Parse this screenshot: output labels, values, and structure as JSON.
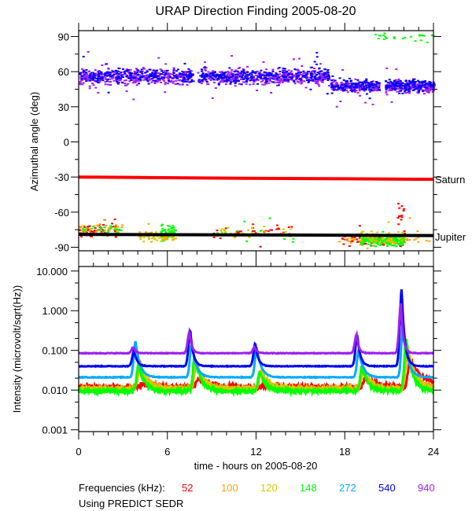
{
  "chart_data": [
    {
      "type": "scatter",
      "title": "URAP Direction Finding  2005-08-20",
      "xlabel": "",
      "ylabel": "Azimuthal angle (deg)",
      "xlim": [
        0,
        24
      ],
      "ylim": [
        -93,
        95
      ],
      "yticks": [
        90,
        60,
        30,
        0,
        -30,
        -60,
        -90
      ],
      "ytick_labels": [
        "90",
        "60",
        "30",
        "0",
        "-30",
        "-60",
        "-90"
      ],
      "reference_lines": [
        {
          "name": "Saturn",
          "color": "#ff0000",
          "points": [
            [
              0,
              -30
            ],
            [
              11,
              -31
            ],
            [
              18,
              -31.5
            ],
            [
              24,
              -32
            ]
          ]
        },
        {
          "name": "Jupiter",
          "color": "#000000",
          "points": [
            [
              0,
              -79
            ],
            [
              24,
              -80
            ]
          ]
        }
      ],
      "clusters": [
        {
          "freq": "940",
          "t0": 0,
          "t1": 7.7,
          "center": 56,
          "spread": 6,
          "count": 420
        },
        {
          "freq": "540",
          "t0": 0,
          "t1": 7.7,
          "center": 57,
          "spread": 6,
          "count": 220
        },
        {
          "freq": "940",
          "t0": 8.0,
          "t1": 16.9,
          "center": 56,
          "spread": 6,
          "count": 480
        },
        {
          "freq": "540",
          "t0": 8.0,
          "t1": 16.9,
          "center": 57,
          "spread": 6,
          "count": 260
        },
        {
          "freq": "940",
          "t0": 17.0,
          "t1": 20.3,
          "center": 48,
          "spread": 5,
          "count": 200
        },
        {
          "freq": "540",
          "t0": 17.0,
          "t1": 20.3,
          "center": 49,
          "spread": 5,
          "count": 120
        },
        {
          "freq": "940",
          "t0": 20.7,
          "t1": 24,
          "center": 48,
          "spread": 5,
          "count": 220
        },
        {
          "freq": "540",
          "t0": 20.7,
          "t1": 24,
          "center": 49,
          "spread": 5,
          "count": 130
        },
        {
          "freq": "52",
          "t0": 0,
          "t1": 2.5,
          "center": -76,
          "spread": 5,
          "count": 70
        },
        {
          "freq": "100",
          "t0": 0,
          "t1": 3,
          "center": -74,
          "spread": 6,
          "count": 40
        },
        {
          "freq": "148",
          "t0": 0,
          "t1": 3,
          "center": -75,
          "spread": 6,
          "count": 30
        },
        {
          "freq": "120",
          "t0": 4,
          "t1": 6.5,
          "center": -80,
          "spread": 4,
          "count": 40
        },
        {
          "freq": "100",
          "t0": 4,
          "t1": 6.5,
          "center": -79,
          "spread": 4,
          "count": 40
        },
        {
          "freq": "148",
          "t0": 5.5,
          "t1": 6.5,
          "center": -76,
          "spread": 5,
          "count": 40
        },
        {
          "freq": "52",
          "t0": 9,
          "t1": 14.5,
          "center": -76,
          "spread": 6,
          "count": 40
        },
        {
          "freq": "120",
          "t0": 9,
          "t1": 14.5,
          "center": -76,
          "spread": 6,
          "count": 30
        },
        {
          "freq": "148",
          "t0": 9,
          "t1": 14.5,
          "center": -78,
          "spread": 6,
          "count": 20
        },
        {
          "freq": "52",
          "t0": 17.5,
          "t1": 22,
          "center": -83,
          "spread": 5,
          "count": 60
        },
        {
          "freq": "148",
          "t0": 19,
          "t1": 22,
          "center": -84,
          "spread": 4,
          "count": 180
        },
        {
          "freq": "120",
          "t0": 19,
          "t1": 22,
          "center": -81,
          "spread": 5,
          "count": 60
        },
        {
          "freq": "100",
          "t0": 17.5,
          "t1": 24,
          "center": -82,
          "spread": 5,
          "count": 40
        },
        {
          "freq": "52",
          "t0": 21.5,
          "t1": 22,
          "center": -62,
          "spread": 8,
          "count": 12
        },
        {
          "freq": "148",
          "t0": 20,
          "t1": 24,
          "center": 90,
          "spread": 3,
          "count": 25
        }
      ]
    },
    {
      "type": "line",
      "xlabel": "time - hours on 2005-08-20",
      "ylabel": "Intensity (microvolt/sqrt(Hz))",
      "xlim": [
        0,
        24
      ],
      "ylim": [
        0.0009,
        13
      ],
      "yscale": "log",
      "xticks": [
        0,
        6,
        12,
        18,
        24
      ],
      "xtick_labels": [
        "0",
        "6",
        "12",
        "18",
        "24"
      ],
      "yticks": [
        10,
        1,
        0.1,
        0.01,
        0.001
      ],
      "ytick_labels": [
        "10.000",
        "1.000",
        "0.100",
        "0.010",
        "0.001"
      ],
      "series": [
        {
          "name": "52",
          "color": "#ff0000",
          "baseline": 0.012,
          "delay": 0.6,
          "decay": 0.9
        },
        {
          "name": "100",
          "color": "#ffa500",
          "baseline": 0.011,
          "delay": 0.45,
          "decay": 0.5
        },
        {
          "name": "120",
          "color": "#cdcd00",
          "baseline": 0.0105,
          "delay": 0.4,
          "decay": 0.5
        },
        {
          "name": "148",
          "color": "#00ff00",
          "baseline": 0.0095,
          "delay": 0.35,
          "decay": 0.4
        },
        {
          "name": "272",
          "color": "#00aaff",
          "baseline": 0.021,
          "delay": 0.15,
          "decay": 0.3
        },
        {
          "name": "540",
          "color": "#0000ff",
          "baseline": 0.04,
          "delay": 0.05,
          "decay": 0.2
        },
        {
          "name": "940",
          "color": "#a020f0",
          "baseline": 0.085,
          "delay": 0.0,
          "decay": 0.15
        }
      ],
      "bursts": [
        {
          "t": 3.7,
          "peaks": {
            "52": 0.015,
            "100": 0.05,
            "120": 0.05,
            "148": 0.045,
            "272": 0.17,
            "540": 0.1,
            "940": 0.12
          }
        },
        {
          "t": 7.5,
          "peaks": {
            "52": 0.02,
            "100": 0.05,
            "120": 0.06,
            "148": 0.07,
            "272": 0.15,
            "540": 0.33,
            "940": 0.3
          }
        },
        {
          "t": 11.9,
          "peaks": {
            "52": 0.013,
            "100": 0.03,
            "120": 0.035,
            "148": 0.03,
            "272": 0.12,
            "540": 0.15,
            "940": 0.12
          }
        },
        {
          "t": 18.8,
          "peaks": {
            "52": 0.02,
            "100": 0.03,
            "120": 0.04,
            "148": 0.04,
            "272": 0.1,
            "540": 0.25,
            "940": 0.25
          }
        },
        {
          "t": 21.8,
          "peaks": {
            "52": 0.06,
            "100": 0.12,
            "120": 0.15,
            "148": 0.2,
            "272": 0.5,
            "540": 3.5,
            "940": 1.5
          }
        }
      ]
    }
  ],
  "annotations": {
    "saturn": "Saturn",
    "jupiter": "Jupiter"
  },
  "legend": {
    "label": "Frequencies (kHz):",
    "items": [
      {
        "name": "52",
        "color": "#ff0000"
      },
      {
        "name": "100",
        "color": "#ffa500"
      },
      {
        "name": "120",
        "color": "#cdcd00"
      },
      {
        "name": "148",
        "color": "#00ff00"
      },
      {
        "name": "272",
        "color": "#00aaff"
      },
      {
        "name": "540",
        "color": "#0000ff"
      },
      {
        "name": "940",
        "color": "#a020f0"
      }
    ],
    "note": "Using PREDICT SEDR"
  }
}
